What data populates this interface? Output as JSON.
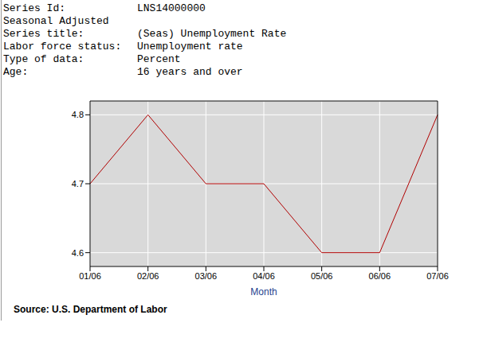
{
  "header": [
    {
      "label": "Series Id:",
      "value": "LNS14000000"
    },
    {
      "label": "Seasonal Adjusted",
      "value": null
    },
    {
      "label": "Series title:",
      "value": "(Seas) Unemployment Rate"
    },
    {
      "label": "Labor force status:",
      "value": "Unemployment rate"
    },
    {
      "label": "Type of data:",
      "value": "Percent"
    },
    {
      "label": "Age:",
      "value": "16 years and over"
    }
  ],
  "chart_data": {
    "type": "line",
    "x_label": "Month",
    "categories": [
      "01/06",
      "02/06",
      "03/06",
      "04/06",
      "05/06",
      "06/06",
      "07/06"
    ],
    "values": [
      4.7,
      4.8,
      4.7,
      4.7,
      4.6,
      4.6,
      4.8
    ],
    "color": "#b00000",
    "ylim": [
      4.58,
      4.82
    ],
    "yticks": [
      4.6,
      4.7,
      4.8
    ],
    "grid": true
  },
  "source": "Source: U.S. Department of Labor"
}
